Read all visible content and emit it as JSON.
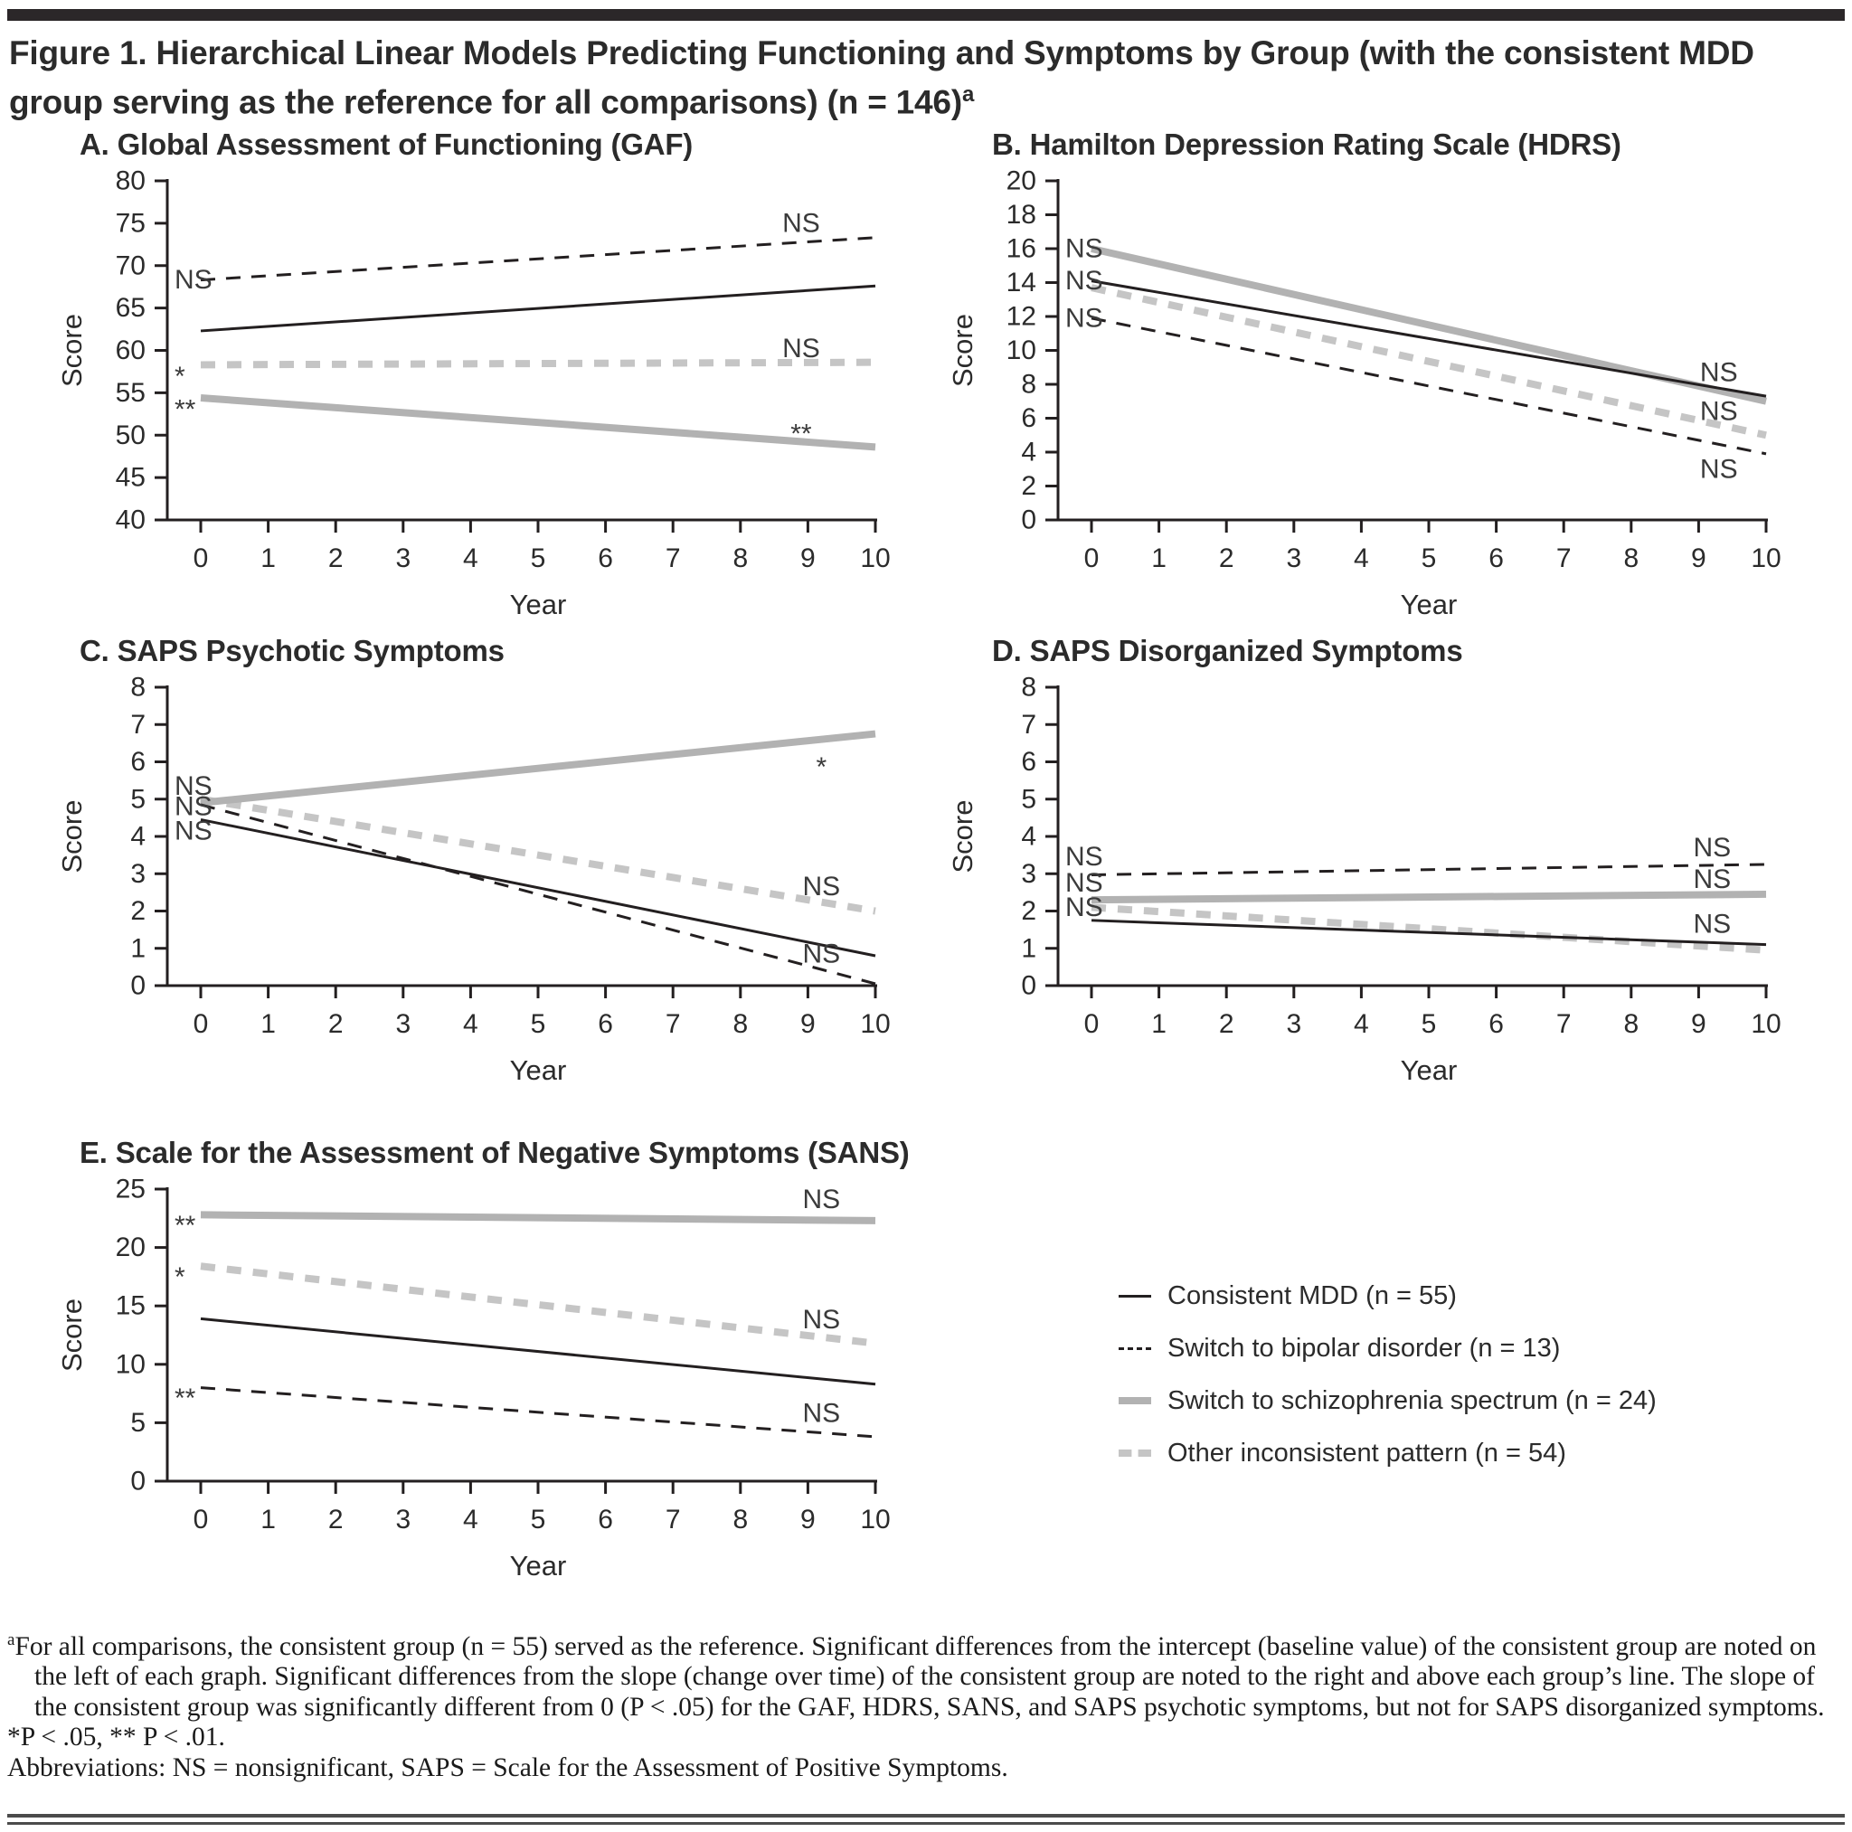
{
  "figure": {
    "title": "Figure 1. Hierarchical Linear Models Predicting Functioning and Symptoms by Group (with the consistent MDD group serving as the reference for all comparisons) (n = 146)",
    "marker": "a"
  },
  "colors": {
    "black_line": "#231f20",
    "gray_solid_line": "#b2b2b2",
    "gray_dashed_line": "#c5c5c5",
    "text": "#2b2b2b",
    "annotation": "#3b3b3b"
  },
  "line_styles": {
    "black-solid": {
      "color": "#231f20",
      "width": 3,
      "dash": ""
    },
    "black-dashed": {
      "color": "#231f20",
      "width": 3,
      "dash": "16 12"
    },
    "gray-solid": {
      "color": "#b2b2b2",
      "width": 8,
      "dash": ""
    },
    "gray-dashed": {
      "color": "#c5c5c5",
      "width": 8,
      "dash": "16 13"
    }
  },
  "groups": [
    {
      "id": "mdd",
      "label": "Consistent MDD (n = 55)",
      "style": "black-solid"
    },
    {
      "id": "bipolar",
      "label": "Switch to bipolar disorder (n = 13)",
      "style": "black-dashed"
    },
    {
      "id": "schizo",
      "label": "Switch to schizophrenia spectrum (n = 24)",
      "style": "gray-solid"
    },
    {
      "id": "other",
      "label": "Other inconsistent pattern (n = 54)",
      "style": "gray-dashed"
    }
  ],
  "chart_data": [
    {
      "panel": "A",
      "type": "line",
      "title": "A. Global Assessment of Functioning (GAF)",
      "xlabel": "Year",
      "ylabel": "Score",
      "xlim": [
        0,
        10
      ],
      "xtick_step": 1,
      "ylim": [
        40,
        80
      ],
      "ytick_step": 5,
      "series": [
        {
          "group": "schizo",
          "style": "gray-solid",
          "x": [
            0,
            10
          ],
          "y": [
            54.4,
            48.6
          ]
        },
        {
          "group": "other",
          "style": "gray-dashed",
          "x": [
            0,
            10
          ],
          "y": [
            58.3,
            58.6
          ]
        },
        {
          "group": "bipolar",
          "style": "black-dashed",
          "x": [
            0,
            10
          ],
          "y": [
            68.3,
            73.3
          ]
        },
        {
          "group": "mdd",
          "style": "black-solid",
          "x": [
            0,
            10
          ],
          "y": [
            62.3,
            67.6
          ]
        }
      ],
      "annotations_left": [
        {
          "text": "NS",
          "y": 68.3
        },
        {
          "text": "*",
          "y": 58.2
        },
        {
          "text": "**",
          "y": 54.3
        }
      ],
      "annotations_right": [
        {
          "text": "NS",
          "x": 8.9,
          "y": 75.0
        },
        {
          "text": "NS",
          "x": 8.9,
          "y": 60.2
        },
        {
          "text": "**",
          "x": 8.9,
          "y": 51.4
        }
      ]
    },
    {
      "panel": "B",
      "type": "line",
      "title": "B. Hamilton Depression Rating Scale (HDRS)",
      "xlabel": "Year",
      "ylabel": "Score",
      "xlim": [
        0,
        10
      ],
      "xtick_step": 1,
      "ylim": [
        0,
        20
      ],
      "ytick_step": 2,
      "series": [
        {
          "group": "other",
          "style": "gray-dashed",
          "x": [
            0,
            10
          ],
          "y": [
            13.7,
            5.0
          ]
        },
        {
          "group": "schizo",
          "style": "gray-solid",
          "x": [
            0,
            10
          ],
          "y": [
            16.0,
            7.0
          ]
        },
        {
          "group": "bipolar",
          "style": "black-dashed",
          "x": [
            0,
            10
          ],
          "y": [
            11.9,
            3.9
          ]
        },
        {
          "group": "mdd",
          "style": "black-solid",
          "x": [
            0,
            10
          ],
          "y": [
            14.1,
            7.3
          ]
        }
      ],
      "annotations_left": [
        {
          "text": "NS",
          "y": 16.0
        },
        {
          "text": "NS",
          "y": 14.1
        },
        {
          "text": "NS",
          "y": 11.9
        }
      ],
      "annotations_right": [
        {
          "text": "NS",
          "x": 9.3,
          "y": 8.7
        },
        {
          "text": "NS",
          "x": 9.3,
          "y": 6.4
        },
        {
          "text": "NS",
          "x": 9.3,
          "y": 3.0
        }
      ]
    },
    {
      "panel": "C",
      "type": "line",
      "title": "C. SAPS Psychotic Symptoms",
      "xlabel": "Year",
      "ylabel": "Score",
      "xlim": [
        0,
        10
      ],
      "xtick_step": 1,
      "ylim": [
        0,
        8
      ],
      "ytick_step": 1,
      "series": [
        {
          "group": "other",
          "style": "gray-dashed",
          "x": [
            0,
            10
          ],
          "y": [
            5.0,
            2.0
          ]
        },
        {
          "group": "schizo",
          "style": "gray-solid",
          "x": [
            0,
            10
          ],
          "y": [
            4.9,
            6.75
          ]
        },
        {
          "group": "bipolar",
          "style": "black-dashed",
          "x": [
            0,
            10
          ],
          "y": [
            4.85,
            0.05
          ]
        },
        {
          "group": "mdd",
          "style": "black-solid",
          "x": [
            0,
            10
          ],
          "y": [
            4.45,
            0.8
          ]
        }
      ],
      "annotations_left": [
        {
          "text": "NS",
          "y": 5.35
        },
        {
          "text": "NS",
          "y": 4.8
        },
        {
          "text": "NS",
          "y": 4.15
        }
      ],
      "annotations_right": [
        {
          "text": "*",
          "x": 9.2,
          "y": 6.15
        },
        {
          "text": "NS",
          "x": 9.2,
          "y": 2.65
        },
        {
          "text": "NS",
          "x": 9.2,
          "y": 0.85
        }
      ]
    },
    {
      "panel": "D",
      "type": "line",
      "title": "D. SAPS Disorganized Symptoms",
      "xlabel": "Year",
      "ylabel": "Score",
      "xlim": [
        0,
        10
      ],
      "xtick_step": 1,
      "ylim": [
        0,
        8
      ],
      "ytick_step": 1,
      "series": [
        {
          "group": "other",
          "style": "gray-dashed",
          "x": [
            0,
            10
          ],
          "y": [
            2.1,
            0.95
          ]
        },
        {
          "group": "schizo",
          "style": "gray-solid",
          "x": [
            0,
            10
          ],
          "y": [
            2.3,
            2.45
          ]
        },
        {
          "group": "bipolar",
          "style": "black-dashed",
          "x": [
            0,
            10
          ],
          "y": [
            2.97,
            3.25
          ]
        },
        {
          "group": "mdd",
          "style": "black-solid",
          "x": [
            0,
            10
          ],
          "y": [
            1.75,
            1.1
          ]
        }
      ],
      "annotations_left": [
        {
          "text": "NS",
          "y": 3.45
        },
        {
          "text": "NS",
          "y": 2.75
        },
        {
          "text": "NS",
          "y": 2.1
        }
      ],
      "annotations_right": [
        {
          "text": "NS",
          "x": 9.2,
          "y": 3.7
        },
        {
          "text": "NS",
          "x": 9.2,
          "y": 2.85
        },
        {
          "text": "NS",
          "x": 9.2,
          "y": 1.65
        }
      ]
    },
    {
      "panel": "E",
      "type": "line",
      "title": "E. Scale for the Assessment of Negative Symptoms (SANS)",
      "xlabel": "Year",
      "ylabel": "Score",
      "xlim": [
        0,
        10
      ],
      "xtick_step": 1,
      "ylim": [
        0,
        25
      ],
      "ytick_step": 5,
      "series": [
        {
          "group": "other",
          "style": "gray-dashed",
          "x": [
            0,
            10
          ],
          "y": [
            18.4,
            11.8
          ]
        },
        {
          "group": "schizo",
          "style": "gray-solid",
          "x": [
            0,
            10
          ],
          "y": [
            22.8,
            22.3
          ]
        },
        {
          "group": "bipolar",
          "style": "black-dashed",
          "x": [
            0,
            10
          ],
          "y": [
            8.0,
            3.8
          ]
        },
        {
          "group": "mdd",
          "style": "black-solid",
          "x": [
            0,
            10
          ],
          "y": [
            13.9,
            8.3
          ]
        }
      ],
      "annotations_left": [
        {
          "text": "**",
          "y": 22.8
        },
        {
          "text": "*",
          "y": 18.4
        },
        {
          "text": "**",
          "y": 8.0
        }
      ],
      "annotations_right": [
        {
          "text": "NS",
          "x": 9.2,
          "y": 24.1
        },
        {
          "text": "NS",
          "x": 9.2,
          "y": 13.8
        },
        {
          "text": "NS",
          "x": 9.2,
          "y": 5.8
        }
      ]
    }
  ],
  "footnotes": {
    "marker": "a",
    "note": "For all comparisons, the consistent group (n = 55) served as the reference. Significant differences from the intercept (baseline value) of the consistent group are noted on the left of each graph. Significant differences from the slope (change over time) of the consistent group are noted to the right and above each group’s line. The slope of the consistent group was significantly different from 0 (P < .05) for the GAF, HDRS, SANS, and SAPS psychotic symptoms, but not for SAPS disorganized symptoms.",
    "significance": "*P < .05, ** P < .01.",
    "abbreviations": "Abbreviations: NS = nonsignificant, SAPS = Scale for the Assessment of Positive Symptoms."
  }
}
